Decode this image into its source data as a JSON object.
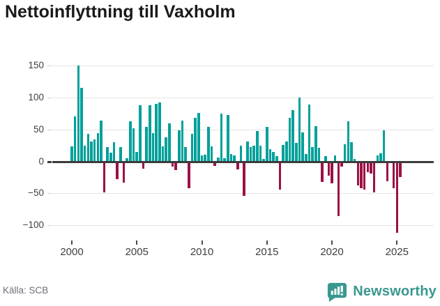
{
  "title": "Nettoinflyttning till Vaxholm",
  "source": "Källa: SCB",
  "brand": {
    "name": "Newsworthy",
    "icon": "bar-chart-speech-bubble"
  },
  "colors": {
    "positive_bar": "#00a09a",
    "negative_bar": "#9b1146",
    "zero_axis": "#3b3b3b",
    "gridline": "#e4e4e4",
    "title_text": "#1a1a1a",
    "tick_text": "#3f3f3f",
    "source_text": "#6e6e78",
    "brand_teal": "#38988f",
    "background": "#ffffff"
  },
  "chart_data": {
    "type": "bar",
    "title": "Nettoinflyttning till Vaxholm",
    "x_unit": "quarter",
    "start_period": "2000Q1",
    "end_period": "2025Q2",
    "grid": true,
    "legend": false,
    "ylim": [
      -125,
      162
    ],
    "y_ticks": [
      150,
      100,
      50,
      0,
      -50,
      -100
    ],
    "x_tick_labels": [
      "2000",
      "2005",
      "2010",
      "2015",
      "2020",
      "2025"
    ],
    "x_tick_every_n_bars": 20,
    "series": [
      {
        "name": "Nettoinflyttning",
        "values": [
          23,
          70,
          150,
          115,
          24,
          43,
          31,
          34,
          44,
          64,
          -48,
          22,
          14,
          30,
          -28,
          22,
          -33,
          5,
          63,
          52,
          15,
          88,
          -11,
          54,
          88,
          44,
          90,
          92,
          23,
          38,
          59,
          -8,
          -14,
          48,
          64,
          22,
          -42,
          43,
          68,
          76,
          9,
          10,
          54,
          23,
          -7,
          6,
          75,
          5,
          72,
          11,
          9,
          -12,
          24,
          -54,
          31,
          22,
          24,
          47,
          25,
          4,
          54,
          19,
          15,
          8,
          -44,
          26,
          31,
          68,
          80,
          29,
          100,
          45,
          11,
          89,
          22,
          55,
          21,
          -32,
          8,
          -22,
          -34,
          9,
          -85,
          -8,
          27,
          63,
          30,
          4,
          -38,
          -42,
          -44,
          -17,
          -19,
          -49,
          9,
          13,
          48,
          -31,
          0,
          -42,
          -112,
          -25
        ]
      }
    ]
  }
}
